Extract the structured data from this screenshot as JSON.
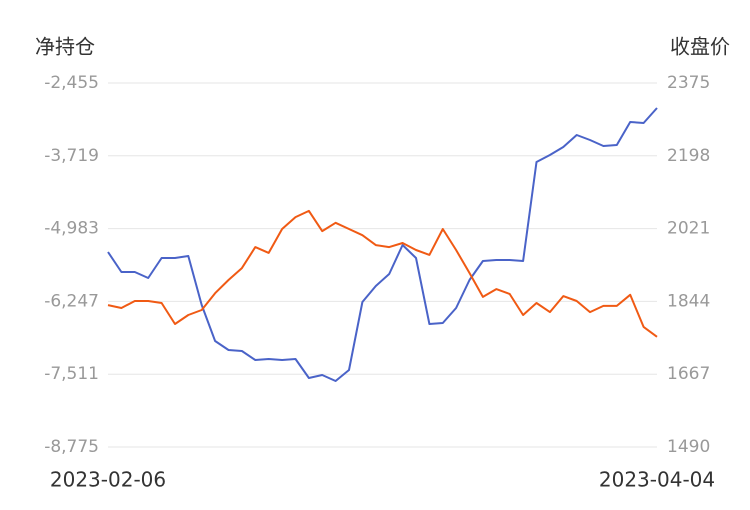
{
  "chart_data": {
    "type": "line",
    "y_title": "净持仓",
    "y2_title": "收盘价",
    "categories": [
      "2023-02-06",
      null,
      null,
      null,
      null,
      null,
      null,
      null,
      null,
      null,
      null,
      null,
      null,
      null,
      null,
      null,
      null,
      null,
      null,
      null,
      null,
      null,
      null,
      null,
      null,
      null,
      null,
      null,
      null,
      null,
      null,
      null,
      null,
      null,
      null,
      null,
      null,
      null,
      null,
      null,
      null,
      "2023-04-04"
    ],
    "ylim": [
      -8775,
      -2455
    ],
    "yticks": [
      {
        "value": -8775,
        "label": "-8,775"
      },
      {
        "value": -7511,
        "label": "-7,511"
      },
      {
        "value": -6247,
        "label": "-6,247"
      },
      {
        "value": -4983,
        "label": "-4,983"
      },
      {
        "value": -3719,
        "label": "-3,719"
      },
      {
        "value": -2455,
        "label": "-2,455"
      }
    ],
    "y2lim": [
      1490,
      2375
    ],
    "y2ticks": [
      1490,
      1667,
      1844,
      2021,
      2198,
      2375
    ],
    "grid": true,
    "series": [
      {
        "color": "#4a63c8",
        "axis": "y",
        "values": [
          -5389,
          -5737,
          -5737,
          -5841,
          -5494,
          -5494,
          -5459,
          -6310,
          -6935,
          -7091,
          -7108,
          -7265,
          -7247,
          -7265,
          -7247,
          -7577,
          -7525,
          -7629,
          -7438,
          -6257,
          -5980,
          -5771,
          -5268,
          -5494,
          -6639,
          -6622,
          -6362,
          -5876,
          -5546,
          -5528,
          -5528,
          -5546,
          -3827,
          -3705,
          -3566,
          -3358,
          -3445,
          -3549,
          -3532,
          -3132,
          -3150,
          -2889
        ]
      },
      {
        "color": "#f05a14",
        "axis": "y2",
        "values": [
          1835,
          1828,
          1845,
          1845,
          1840,
          1789,
          1811,
          1823,
          1864,
          1896,
          1925,
          1976,
          1962,
          2020,
          2049,
          2064,
          2015,
          2035,
          2020,
          2005,
          1981,
          1976,
          1986,
          1969,
          1957,
          2020,
          1969,
          1913,
          1855,
          1874,
          1862,
          1811,
          1840,
          1818,
          1857,
          1845,
          1818,
          1833,
          1833,
          1860,
          1782,
          1758
        ]
      }
    ]
  }
}
